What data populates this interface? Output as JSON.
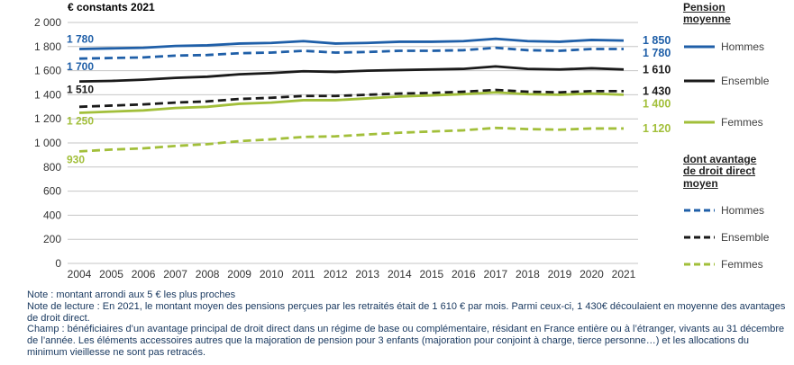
{
  "colors": {
    "hommes": "#1f5fa8",
    "ensemble": "#1a1a1a",
    "femmes": "#a2bf3a",
    "grid": "#c6c6c6",
    "tick": "#333333",
    "note": "#17375e"
  },
  "chart_data": {
    "type": "line",
    "title": "€ constants 2021",
    "xlabel": "",
    "ylabel": "",
    "ylim": [
      0,
      2000
    ],
    "ytick_step": 200,
    "grid": true,
    "x": [
      2004,
      2005,
      2006,
      2007,
      2008,
      2009,
      2010,
      2011,
      2012,
      2013,
      2014,
      2015,
      2016,
      2017,
      2018,
      2019,
      2020,
      2021
    ],
    "series": [
      {
        "name": "Hommes",
        "group": "pension",
        "style": "solid",
        "color_key": "hommes",
        "start_label": "1 780",
        "start_label_pos": "above",
        "end_label": "1 850",
        "values": [
          1780,
          1785,
          1790,
          1805,
          1810,
          1825,
          1830,
          1845,
          1825,
          1830,
          1840,
          1840,
          1845,
          1865,
          1845,
          1840,
          1855,
          1850
        ]
      },
      {
        "name": "Ensemble",
        "group": "pension",
        "style": "solid",
        "color_key": "ensemble",
        "start_label": "1 510",
        "start_label_pos": "below",
        "end_label": "1 610",
        "values": [
          1510,
          1515,
          1525,
          1540,
          1550,
          1570,
          1580,
          1595,
          1590,
          1600,
          1605,
          1610,
          1615,
          1635,
          1615,
          1610,
          1620,
          1610
        ]
      },
      {
        "name": "Femmes",
        "group": "pension",
        "style": "solid",
        "color_key": "femmes",
        "start_label": "1 250",
        "start_label_pos": "below",
        "end_label": "1 400",
        "values": [
          1250,
          1260,
          1270,
          1290,
          1300,
          1325,
          1335,
          1355,
          1355,
          1370,
          1385,
          1395,
          1405,
          1420,
          1405,
          1400,
          1410,
          1400
        ]
      },
      {
        "name": "Hommes",
        "group": "droit_direct",
        "style": "dashed",
        "color_key": "hommes",
        "start_label": "1 700",
        "start_label_pos": "below",
        "end_label": "1 780",
        "values": [
          1700,
          1705,
          1710,
          1725,
          1730,
          1745,
          1750,
          1765,
          1750,
          1755,
          1765,
          1765,
          1770,
          1790,
          1770,
          1765,
          1780,
          1780
        ]
      },
      {
        "name": "Ensemble",
        "group": "droit_direct",
        "style": "dashed",
        "color_key": "ensemble",
        "start_label": "",
        "start_label_pos": "below",
        "end_label": "1 430",
        "values": [
          1300,
          1310,
          1320,
          1335,
          1345,
          1365,
          1375,
          1390,
          1390,
          1400,
          1410,
          1415,
          1425,
          1440,
          1425,
          1420,
          1430,
          1430
        ]
      },
      {
        "name": "Femmes",
        "group": "droit_direct",
        "style": "dashed",
        "color_key": "femmes",
        "start_label": "930",
        "start_label_pos": "below",
        "end_label": "1 120",
        "values": [
          930,
          945,
          955,
          975,
          990,
          1015,
          1030,
          1050,
          1055,
          1070,
          1085,
          1095,
          1105,
          1125,
          1115,
          1110,
          1120,
          1120
        ]
      }
    ],
    "legend": {
      "position": "right",
      "group1_title": "Pension moyenne",
      "group2_title": "dont avantage de droit direct moyen"
    }
  },
  "notes": [
    "Note : montant arrondi aux 5 € les plus proches",
    "Note de lecture : En 2021, le montant moyen des pensions perçues par les retraités était de 1 610 € par mois. Parmi ceux-ci, 1 430€ découlaient en moyenne des avantages de droit direct.",
    "Champ : bénéficiaires d’un avantage principal de droit direct dans un régime de base ou complémentaire, résidant en France entière ou à l’étranger, vivants au 31 décembre de l’année. Les éléments accessoires autres que la majoration de pension pour 3 enfants (majoration pour conjoint à charge, tierce personne…) et les allocations du minimum vieillesse ne sont pas retracés."
  ]
}
